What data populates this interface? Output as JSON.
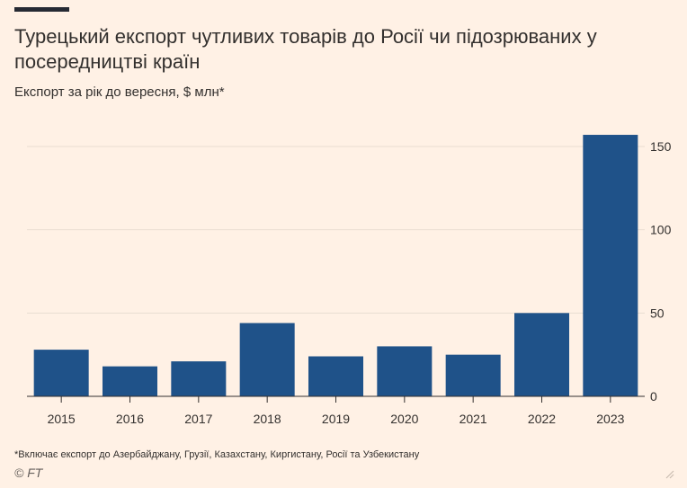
{
  "header": {
    "title": "Турецький експорт чутливих товарів до Росії чи підозрюваних у посередництві країн",
    "subtitle": "Експорт за рік до вересня, $ млн*"
  },
  "footer": {
    "footnote": "*Включає експорт до Азербайджану, Грузії, Казахстану, Киргистану, Росії та Узбекистану",
    "source": "© FT"
  },
  "colors": {
    "background": "#fff1e5",
    "bar": "#1f5289",
    "grid": "#e9ddd1",
    "axis": "#33302e"
  },
  "chart_data": {
    "type": "bar",
    "categories": [
      "2015",
      "2016",
      "2017",
      "2018",
      "2019",
      "2020",
      "2021",
      "2022",
      "2023"
    ],
    "values": [
      28,
      18,
      21,
      44,
      24,
      30,
      25,
      50,
      157
    ],
    "ylim": [
      0,
      160
    ],
    "yticks": [
      0,
      50,
      100,
      150
    ],
    "y_axis_side": "right",
    "grid": true,
    "xlabel": "",
    "ylabel": ""
  }
}
